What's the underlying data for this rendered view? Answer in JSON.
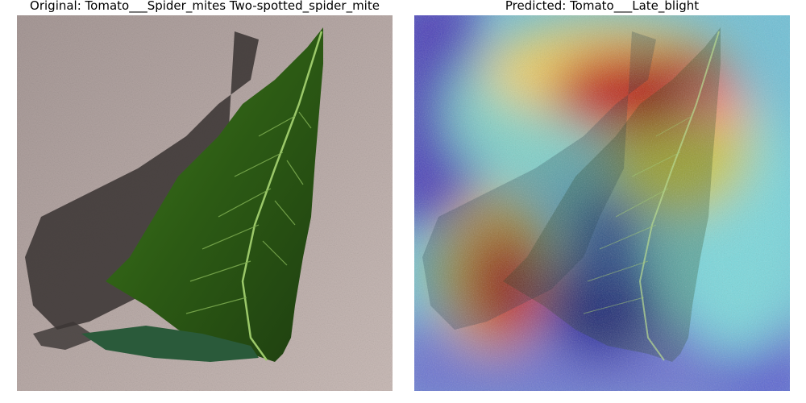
{
  "panels": [
    {
      "title": "Original: Tomato___Spider_mites Two-spotted_spider_mite",
      "image": "tomato-leaf-photo"
    },
    {
      "title": "Predicted: Tomato___Late_blight",
      "image": "tomato-leaf-gradcam-heatmap-overlay"
    }
  ]
}
